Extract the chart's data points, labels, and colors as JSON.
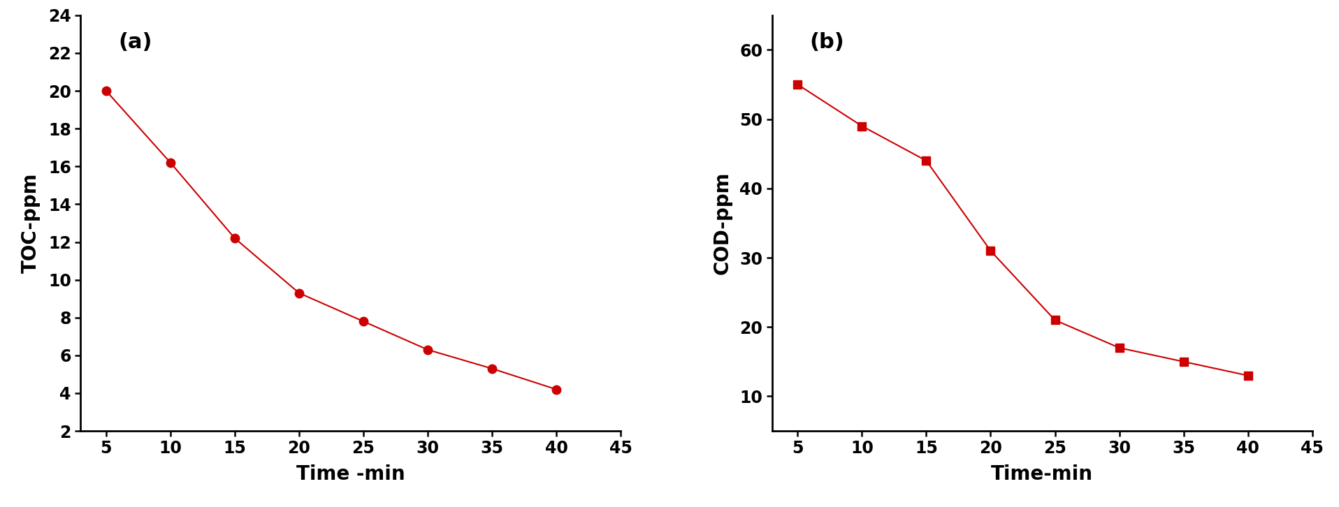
{
  "toc_x": [
    5,
    10,
    15,
    20,
    25,
    30,
    35,
    40
  ],
  "toc_y": [
    20.0,
    16.2,
    12.2,
    9.3,
    7.8,
    6.3,
    5.3,
    4.2
  ],
  "cod_x": [
    5,
    10,
    15,
    20,
    25,
    30,
    35,
    40
  ],
  "cod_y": [
    55.0,
    49.0,
    44.0,
    31.0,
    21.0,
    17.0,
    15.0,
    13.0
  ],
  "toc_xlabel": "Time -min",
  "cod_xlabel": "Time-min",
  "toc_ylabel": "TOC-ppm",
  "cod_ylabel": "COD-ppm",
  "label_a": "(a)",
  "label_b": "(b)",
  "line_color": "#cc0000",
  "marker_color": "#cc0000",
  "toc_xlim": [
    3,
    45
  ],
  "toc_ylim": [
    2,
    24
  ],
  "cod_xlim": [
    3,
    45
  ],
  "cod_ylim": [
    5,
    65
  ],
  "toc_xticks": [
    5,
    10,
    15,
    20,
    25,
    30,
    35,
    40,
    45
  ],
  "toc_yticks": [
    2,
    4,
    6,
    8,
    10,
    12,
    14,
    16,
    18,
    20,
    22,
    24
  ],
  "cod_xticks": [
    5,
    10,
    15,
    20,
    25,
    30,
    35,
    40,
    45
  ],
  "cod_yticks": [
    10,
    20,
    30,
    40,
    50,
    60
  ],
  "bg_color": "#ffffff",
  "tick_label_fontsize": 17,
  "axis_label_fontsize": 20,
  "panel_label_fontsize": 22
}
